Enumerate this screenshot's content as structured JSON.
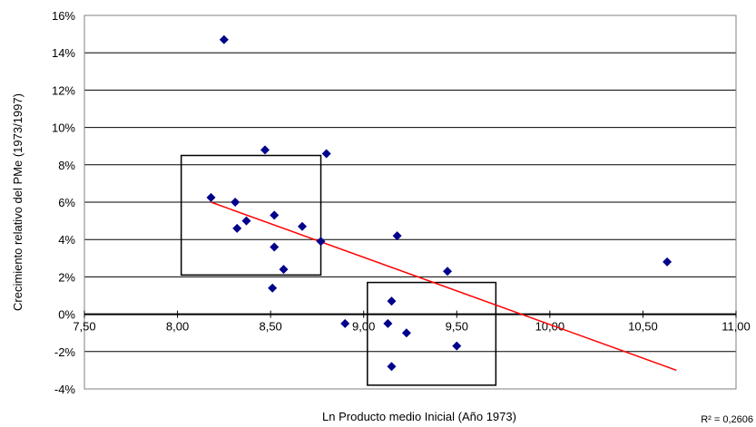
{
  "chart_data": {
    "type": "scatter",
    "xlabel": "Ln Producto medio Inicial (Año 1973)",
    "ylabel": "Crecimiento relativo del PMe (1973/1997)",
    "xlim": [
      7.5,
      11.0
    ],
    "ylim": [
      -4,
      16
    ],
    "x_ticks": [
      7.5,
      8.0,
      8.5,
      9.0,
      9.5,
      10.0,
      10.5,
      11.0
    ],
    "x_tick_labels": [
      "7,50",
      "8,00",
      "8,50",
      "9,00",
      "9,50",
      "10,00",
      "10,50",
      "11,00"
    ],
    "y_ticks": [
      -4,
      -2,
      0,
      2,
      4,
      6,
      8,
      10,
      12,
      14,
      16
    ],
    "y_tick_labels": [
      "-4%",
      "-2%",
      "0%",
      "2%",
      "4%",
      "6%",
      "8%",
      "10%",
      "12%",
      "14%",
      "16%"
    ],
    "grid": "horizontal",
    "marker_color": "#00008B",
    "trend_color": "#FF0000",
    "points": [
      {
        "x": 8.25,
        "y": 14.7
      },
      {
        "x": 8.47,
        "y": 8.8
      },
      {
        "x": 8.8,
        "y": 8.6
      },
      {
        "x": 8.18,
        "y": 6.25
      },
      {
        "x": 8.31,
        "y": 6.0
      },
      {
        "x": 8.52,
        "y": 5.3
      },
      {
        "x": 8.37,
        "y": 5.0
      },
      {
        "x": 8.67,
        "y": 4.7
      },
      {
        "x": 8.32,
        "y": 4.6
      },
      {
        "x": 8.77,
        "y": 3.9
      },
      {
        "x": 8.52,
        "y": 3.6
      },
      {
        "x": 8.57,
        "y": 2.4
      },
      {
        "x": 8.51,
        "y": 1.4
      },
      {
        "x": 9.18,
        "y": 4.2
      },
      {
        "x": 9.45,
        "y": 2.3
      },
      {
        "x": 10.63,
        "y": 2.8
      },
      {
        "x": 9.15,
        "y": 0.7
      },
      {
        "x": 8.9,
        "y": -0.5
      },
      {
        "x": 9.13,
        "y": -0.5
      },
      {
        "x": 9.23,
        "y": -1.0
      },
      {
        "x": 9.5,
        "y": -1.7
      },
      {
        "x": 9.15,
        "y": -2.8
      }
    ],
    "trendline": {
      "x1": 8.18,
      "y1": 6.0,
      "x2": 10.68,
      "y2": -3.0
    },
    "boxes": [
      {
        "x1": 8.02,
        "x2": 8.77,
        "y1": 2.1,
        "y2": 8.5
      },
      {
        "x1": 9.02,
        "x2": 9.71,
        "y1": -3.8,
        "y2": 1.7
      }
    ],
    "r_squared": "R² = 0,2606"
  }
}
